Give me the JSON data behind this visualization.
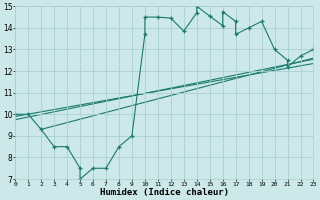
{
  "xlabel": "Humidex (Indice chaleur)",
  "xlim": [
    0,
    23
  ],
  "ylim": [
    7,
    15
  ],
  "yticks": [
    7,
    8,
    9,
    10,
    11,
    12,
    13,
    14,
    15
  ],
  "xticks": [
    0,
    1,
    2,
    3,
    4,
    5,
    6,
    7,
    8,
    9,
    10,
    11,
    12,
    13,
    14,
    15,
    16,
    17,
    18,
    19,
    20,
    21,
    22,
    23
  ],
  "bg_color": "#cce8e8",
  "line_color": "#1a7a6e",
  "grid_color": "#aacfcf",
  "jagged_x": [
    0,
    1,
    2,
    3,
    4,
    5,
    5,
    6,
    7,
    8,
    9,
    10,
    10,
    11,
    12,
    13,
    14,
    14,
    15,
    16,
    16,
    17,
    17,
    18,
    19,
    20,
    21,
    21,
    22,
    23
  ],
  "jagged_y": [
    10,
    10,
    9.3,
    8.5,
    8.5,
    7.5,
    7.0,
    7.5,
    7.5,
    8.5,
    9.0,
    13.7,
    14.5,
    14.5,
    14.45,
    13.85,
    14.7,
    15.0,
    14.55,
    14.1,
    14.75,
    14.3,
    13.7,
    14.0,
    14.3,
    13.0,
    12.5,
    12.2,
    12.7,
    13.0
  ],
  "reg_line1_x": [
    0,
    23
  ],
  "reg_line1_y": [
    9.9,
    12.35
  ],
  "reg_line2_x": [
    0,
    23
  ],
  "reg_line2_y": [
    9.75,
    12.55
  ],
  "reg_line3_x": [
    2,
    23
  ],
  "reg_line3_y": [
    9.3,
    12.6
  ]
}
